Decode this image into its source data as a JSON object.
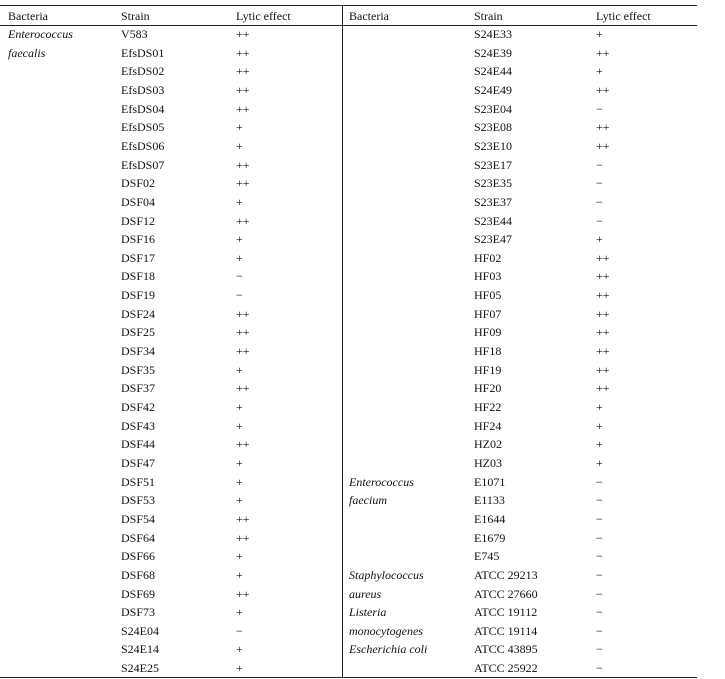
{
  "header": {
    "left": [
      "Bacteria",
      "Strain",
      "Lytic effect"
    ],
    "right": [
      "Bacteria",
      "Strain",
      "Lytic effect"
    ]
  },
  "left_rows": [
    {
      "bacteria": "Enterococcus",
      "strain": "V583",
      "lytic": "++"
    },
    {
      "bacteria": "faecalis",
      "strain": "EfsDS01",
      "lytic": "++"
    },
    {
      "strain": "EfsDS02",
      "lytic": "++"
    },
    {
      "strain": "EfsDS03",
      "lytic": "++"
    },
    {
      "strain": "EfsDS04",
      "lytic": "++"
    },
    {
      "strain": "EfsDS05",
      "lytic": "+"
    },
    {
      "strain": "EfsDS06",
      "lytic": "+"
    },
    {
      "strain": "EfsDS07",
      "lytic": "++"
    },
    {
      "strain": "DSF02",
      "lytic": "++"
    },
    {
      "strain": "DSF04",
      "lytic": "+"
    },
    {
      "strain": "DSF12",
      "lytic": "++"
    },
    {
      "strain": "DSF16",
      "lytic": "+"
    },
    {
      "strain": "DSF17",
      "lytic": "+"
    },
    {
      "strain": "DSF18",
      "lytic": "−"
    },
    {
      "strain": "DSF19",
      "lytic": "−"
    },
    {
      "strain": "DSF24",
      "lytic": "++"
    },
    {
      "strain": "DSF25",
      "lytic": "++"
    },
    {
      "strain": "DSF34",
      "lytic": "++"
    },
    {
      "strain": "DSF35",
      "lytic": "+"
    },
    {
      "strain": "DSF37",
      "lytic": "++"
    },
    {
      "strain": "DSF42",
      "lytic": "+"
    },
    {
      "strain": "DSF43",
      "lytic": "+"
    },
    {
      "strain": "DSF44",
      "lytic": "++"
    },
    {
      "strain": "DSF47",
      "lytic": "+"
    },
    {
      "strain": "DSF51",
      "lytic": "+"
    },
    {
      "strain": "DSF53",
      "lytic": "+"
    },
    {
      "strain": "DSF54",
      "lytic": "++"
    },
    {
      "strain": "DSF64",
      "lytic": "++"
    },
    {
      "strain": "DSF66",
      "lytic": "+"
    },
    {
      "strain": "DSF68",
      "lytic": "+"
    },
    {
      "strain": "DSF69",
      "lytic": "++"
    },
    {
      "strain": "DSF73",
      "lytic": "+"
    },
    {
      "strain": "S24E04",
      "lytic": "−"
    },
    {
      "strain": "S24E14",
      "lytic": "+"
    },
    {
      "strain": "S24E25",
      "lytic": "+"
    }
  ],
  "right_rows": [
    {
      "strain": "S24E33",
      "lytic": "+"
    },
    {
      "strain": "S24E39",
      "lytic": "++"
    },
    {
      "strain": "S24E44",
      "lytic": "+"
    },
    {
      "strain": "S24E49",
      "lytic": "++"
    },
    {
      "strain": "S23E04",
      "lytic": "−"
    },
    {
      "strain": "S23E08",
      "lytic": "++"
    },
    {
      "strain": "S23E10",
      "lytic": "++"
    },
    {
      "strain": "S23E17",
      "lytic": "−"
    },
    {
      "strain": "S23E35",
      "lytic": "−"
    },
    {
      "strain": "S23E37",
      "lytic": "−"
    },
    {
      "strain": "S23E44",
      "lytic": "−"
    },
    {
      "strain": "S23E47",
      "lytic": "+"
    },
    {
      "strain": "HF02",
      "lytic": "++"
    },
    {
      "strain": "HF03",
      "lytic": "++"
    },
    {
      "strain": "HF05",
      "lytic": "++"
    },
    {
      "strain": "HF07",
      "lytic": "++"
    },
    {
      "strain": "HF09",
      "lytic": "++"
    },
    {
      "strain": "HF18",
      "lytic": "++"
    },
    {
      "strain": "HF19",
      "lytic": "++"
    },
    {
      "strain": "HF20",
      "lytic": "++"
    },
    {
      "strain": "HF22",
      "lytic": "+"
    },
    {
      "strain": "HF24",
      "lytic": "+"
    },
    {
      "strain": "HZ02",
      "lytic": "+"
    },
    {
      "strain": "HZ03",
      "lytic": "+"
    },
    {
      "bacteria": "Enterococcus",
      "strain": "E1071",
      "lytic": "−"
    },
    {
      "bacteria": "faecium",
      "strain": "E1133",
      "lytic": "−"
    },
    {
      "strain": "E1644",
      "lytic": "−"
    },
    {
      "strain": "E1679",
      "lytic": "−"
    },
    {
      "strain": "E745",
      "lytic": "−"
    },
    {
      "bacteria": "Staphylococcus",
      "strain": "ATCC 29213",
      "lytic": "−"
    },
    {
      "bacteria": "aureus",
      "strain": "ATCC 27660",
      "lytic": "−"
    },
    {
      "bacteria": "Listeria",
      "strain": "ATCC 19112",
      "lytic": "−"
    },
    {
      "bacteria": "monocytogenes",
      "strain": "ATCC 19114",
      "lytic": "−"
    },
    {
      "bacteria": "Escherichia coli",
      "strain": "ATCC 43895",
      "lytic": "−"
    },
    {
      "strain": "ATCC 25922",
      "lytic": "−"
    }
  ]
}
